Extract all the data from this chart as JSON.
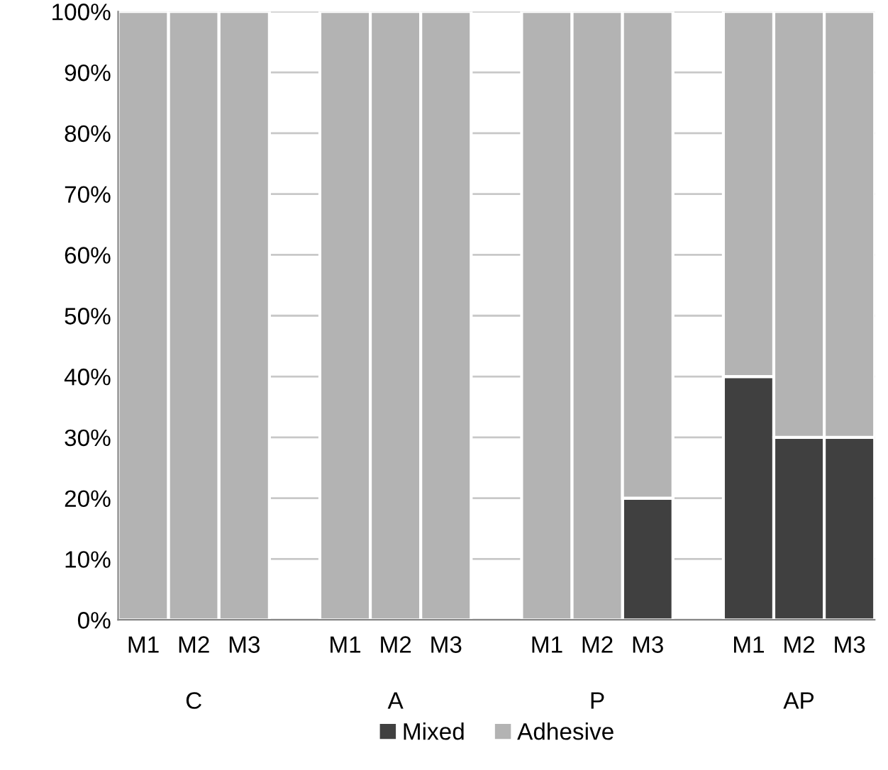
{
  "chart_data": {
    "type": "bar",
    "stacked": true,
    "categories": [
      "M1",
      "M2",
      "M3",
      null,
      "M1",
      "M2",
      "M3",
      null,
      "M1",
      "M2",
      "M3",
      null,
      "M1",
      "M2",
      "M3"
    ],
    "series": [
      {
        "name": "Mixed",
        "color": "#404040",
        "values": [
          0,
          0,
          0,
          null,
          0,
          0,
          0,
          null,
          0,
          0,
          20,
          null,
          40,
          30,
          30
        ]
      },
      {
        "name": "Adhesive",
        "color": "#b3b3b3",
        "values": [
          100,
          100,
          100,
          null,
          100,
          100,
          100,
          null,
          100,
          100,
          80,
          null,
          60,
          70,
          70
        ]
      }
    ],
    "annotations": [
      "C",
      "A",
      "P",
      "AP"
    ],
    "ylim": [
      0,
      100
    ],
    "yticks": [
      {
        "value": 0,
        "label": "0%"
      },
      {
        "value": 10,
        "label": "10%"
      },
      {
        "value": 20,
        "label": "20%"
      },
      {
        "value": 30,
        "label": "30%"
      },
      {
        "value": 40,
        "label": "40%"
      },
      {
        "value": 50,
        "label": "50%"
      },
      {
        "value": 60,
        "label": "60%"
      },
      {
        "value": 70,
        "label": "70%"
      },
      {
        "value": 80,
        "label": "80%"
      },
      {
        "value": 90,
        "label": "90%"
      },
      {
        "value": 100,
        "label": "100%"
      }
    ],
    "grid": "y",
    "legend": "bottom"
  }
}
